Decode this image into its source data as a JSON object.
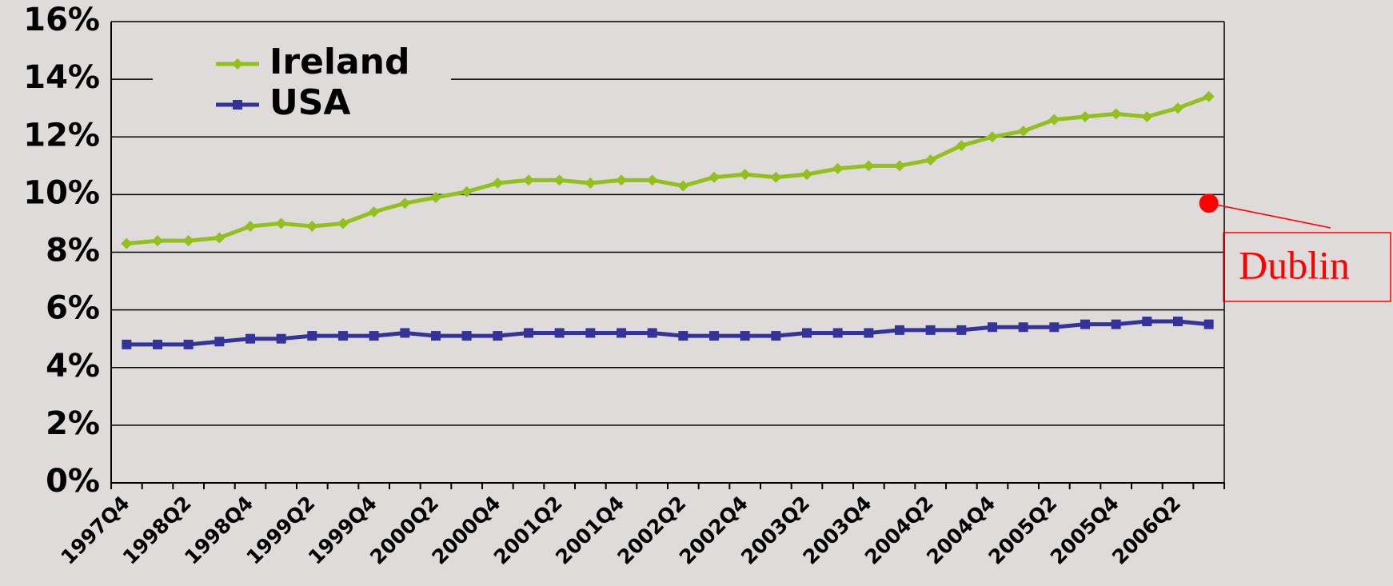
{
  "chart_data": {
    "type": "line",
    "categories": [
      "1997Q4",
      null,
      "1998Q2",
      null,
      "1998Q4",
      null,
      "1999Q2",
      null,
      "1999Q4",
      null,
      "2000Q2",
      null,
      "2000Q4",
      null,
      "2001Q2",
      null,
      "2001Q4",
      null,
      "2002Q2",
      null,
      "2002Q4",
      null,
      "2003Q2",
      null,
      "2003Q4",
      null,
      "2004Q2",
      null,
      "2004Q4",
      null,
      "2005Q2",
      null,
      "2005Q4",
      null,
      "2006Q2",
      null
    ],
    "series": [
      {
        "name": "Ireland",
        "color": "#92c01f",
        "marker": "diamond",
        "values": [
          8.3,
          8.4,
          8.4,
          8.5,
          8.9,
          9.0,
          8.9,
          9.0,
          9.4,
          9.7,
          9.9,
          10.1,
          10.4,
          10.5,
          10.5,
          10.4,
          10.5,
          10.5,
          10.3,
          10.6,
          10.7,
          10.6,
          10.7,
          10.9,
          11.0,
          11.0,
          11.2,
          11.7,
          12.0,
          12.2,
          12.6,
          12.7,
          12.8,
          12.7,
          13.0,
          13.4
        ]
      },
      {
        "name": "USA",
        "color": "#333399",
        "marker": "square",
        "values": [
          4.8,
          4.8,
          4.8,
          4.9,
          5.0,
          5.0,
          5.1,
          5.1,
          5.1,
          5.2,
          5.1,
          5.1,
          5.1,
          5.2,
          5.2,
          5.2,
          5.2,
          5.2,
          5.1,
          5.1,
          5.1,
          5.1,
          5.2,
          5.2,
          5.2,
          5.3,
          5.3,
          5.3,
          5.4,
          5.4,
          5.4,
          5.5,
          5.5,
          5.6,
          5.6,
          5.5
        ]
      }
    ],
    "annotation": {
      "text": "Dublin",
      "value": 9.7,
      "color": "#ff0000"
    },
    "ylim": [
      0,
      16
    ],
    "yticks": [
      {
        "value": 0,
        "label": "0%"
      },
      {
        "value": 2,
        "label": "2%"
      },
      {
        "value": 4,
        "label": "4%"
      },
      {
        "value": 6,
        "label": "6%"
      },
      {
        "value": 8,
        "label": "8%"
      },
      {
        "value": 10,
        "label": "10%"
      },
      {
        "value": 12,
        "label": "12%"
      },
      {
        "value": 14,
        "label": "14%"
      },
      {
        "value": 16,
        "label": "16%"
      }
    ],
    "grid": true,
    "legend": "upper left"
  }
}
